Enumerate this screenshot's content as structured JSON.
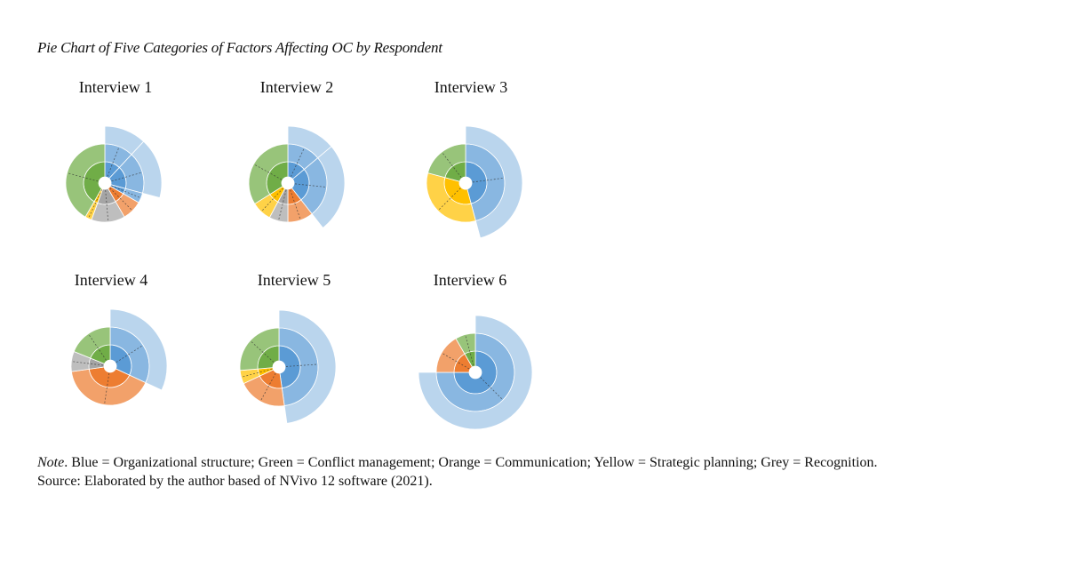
{
  "figure": {
    "title": "Pie Chart of Five Categories of Factors Affecting OC by Respondent"
  },
  "colors": {
    "Organizational structure": "#5b9bd5",
    "Conflict management": "#70ad47",
    "Communication": "#ed7d31",
    "Strategic planning": "#ffc000",
    "Recognition": "#a5a5a5"
  },
  "chart_data": [
    {
      "type": "pie",
      "title": "Interview 1",
      "segments": [
        {
          "category": "Organizational structure",
          "start": 0,
          "end": 43,
          "levels": 3
        },
        {
          "category": "Organizational structure",
          "start": 43,
          "end": 105,
          "levels": 3
        },
        {
          "category": "Organizational structure",
          "start": 105,
          "end": 120,
          "levels": 2
        },
        {
          "category": "Communication",
          "start": 120,
          "end": 150,
          "levels": 2
        },
        {
          "category": "Recognition",
          "start": 150,
          "end": 200,
          "levels": 2
        },
        {
          "category": "Strategic planning",
          "start": 200,
          "end": 210,
          "levels": 2
        },
        {
          "category": "Conflict management",
          "start": 210,
          "end": 360,
          "levels": 2
        }
      ]
    },
    {
      "type": "pie",
      "title": "Interview 2",
      "segments": [
        {
          "category": "Organizational structure",
          "start": 0,
          "end": 50,
          "levels": 3
        },
        {
          "category": "Organizational structure",
          "start": 50,
          "end": 142,
          "levels": 3
        },
        {
          "category": "Communication",
          "start": 142,
          "end": 180,
          "levels": 2
        },
        {
          "category": "Recognition",
          "start": 180,
          "end": 208,
          "levels": 2
        },
        {
          "category": "Strategic planning",
          "start": 208,
          "end": 238,
          "levels": 2
        },
        {
          "category": "Conflict management",
          "start": 238,
          "end": 360,
          "levels": 2
        }
      ]
    },
    {
      "type": "pie",
      "title": "Interview 3",
      "segments": [
        {
          "category": "Organizational structure",
          "start": 0,
          "end": 165,
          "levels": 3
        },
        {
          "category": "Strategic planning",
          "start": 165,
          "end": 285,
          "levels": 2
        },
        {
          "category": "Conflict management",
          "start": 285,
          "end": 360,
          "levels": 2
        }
      ]
    },
    {
      "type": "pie",
      "title": "Interview 4",
      "segments": [
        {
          "category": "Organizational structure",
          "start": 0,
          "end": 115,
          "levels": 3
        },
        {
          "category": "Communication",
          "start": 115,
          "end": 262,
          "levels": 2
        },
        {
          "category": "Recognition",
          "start": 262,
          "end": 292,
          "levels": 2
        },
        {
          "category": "Conflict management",
          "start": 292,
          "end": 360,
          "levels": 2
        }
      ]
    },
    {
      "type": "pie",
      "title": "Interview 5",
      "segments": [
        {
          "category": "Organizational structure",
          "start": 0,
          "end": 172,
          "levels": 3
        },
        {
          "category": "Communication",
          "start": 172,
          "end": 245,
          "levels": 2
        },
        {
          "category": "Strategic planning",
          "start": 245,
          "end": 265,
          "levels": 2
        },
        {
          "category": "Conflict management",
          "start": 265,
          "end": 360,
          "levels": 2
        }
      ]
    },
    {
      "type": "pie",
      "title": "Interview 6",
      "segments": [
        {
          "category": "Organizational structure",
          "start": 0,
          "end": 270,
          "levels": 3
        },
        {
          "category": "Communication",
          "start": 270,
          "end": 330,
          "levels": 2
        },
        {
          "category": "Conflict management",
          "start": 330,
          "end": 360,
          "levels": 2
        }
      ]
    }
  ],
  "note": {
    "lead": "Note",
    "text": ". Blue = Organizational structure; Green = Conflict management; Orange = Communication; Yellow = Strategic planning; Grey = Recognition.",
    "source": "Source: Elaborated by the author based of NVivo 12 software (2021)."
  }
}
